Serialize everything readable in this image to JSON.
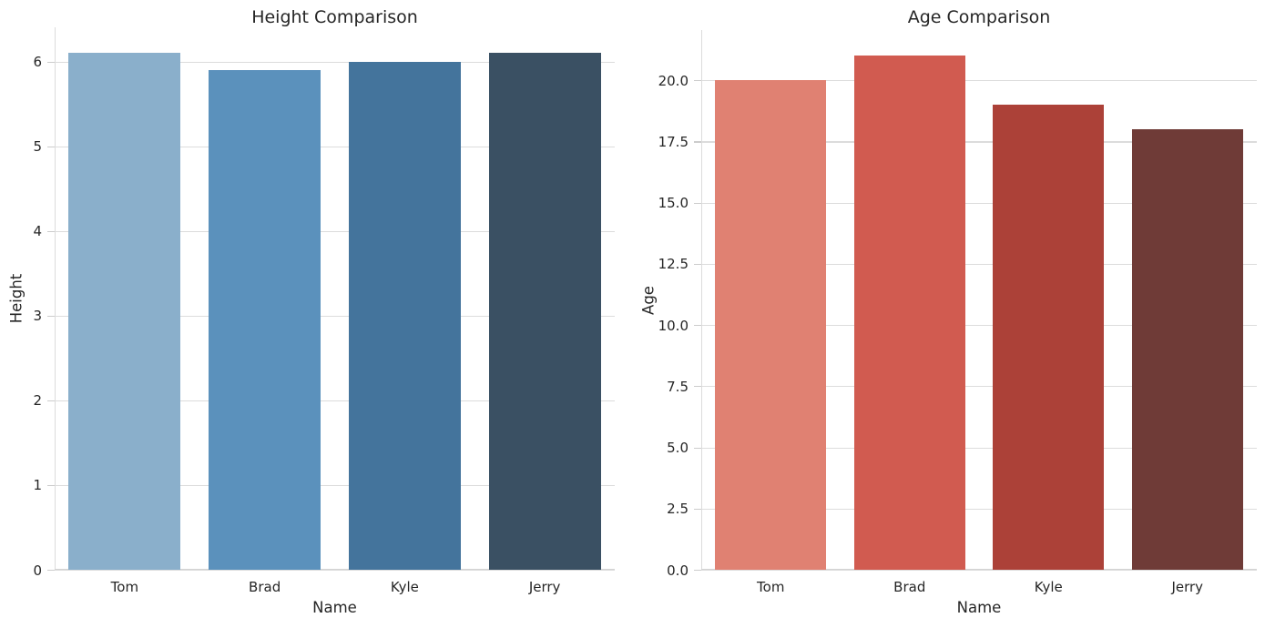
{
  "figure": {
    "background": "#ffffff",
    "text_color": "#262626",
    "grid_color": "#dcdcdc",
    "spine_color": "#d3d3d3"
  },
  "chart_data": [
    {
      "type": "bar",
      "title": "Height Comparison",
      "xlabel": "Name",
      "ylabel": "Height",
      "categories": [
        "Tom",
        "Brad",
        "Kyle",
        "Jerry"
      ],
      "values": [
        6.1,
        5.9,
        6.0,
        6.1
      ],
      "bar_colors": [
        "#8AAFCB",
        "#5B91BC",
        "#44749C",
        "#3A5063"
      ],
      "ylim": [
        0,
        6.405
      ],
      "yticks": [
        0,
        1,
        2,
        3,
        4,
        5,
        6
      ],
      "ytick_labels": [
        "0",
        "1",
        "2",
        "3",
        "4",
        "5",
        "6"
      ],
      "grid": true,
      "legend_position": "none"
    },
    {
      "type": "bar",
      "title": "Age Comparison",
      "xlabel": "Name",
      "ylabel": "Age",
      "categories": [
        "Tom",
        "Brad",
        "Kyle",
        "Jerry"
      ],
      "values": [
        20,
        21,
        19,
        18
      ],
      "bar_colors": [
        "#E08172",
        "#D15B50",
        "#AC4138",
        "#6F3B37"
      ],
      "ylim": [
        0,
        22.05
      ],
      "yticks": [
        0,
        2.5,
        5,
        7.5,
        10,
        12.5,
        15,
        17.5,
        20
      ],
      "ytick_labels": [
        "0.0",
        "2.5",
        "5.0",
        "7.5",
        "10.0",
        "12.5",
        "15.0",
        "17.5",
        "20.0"
      ],
      "grid": true,
      "legend_position": "none"
    }
  ]
}
